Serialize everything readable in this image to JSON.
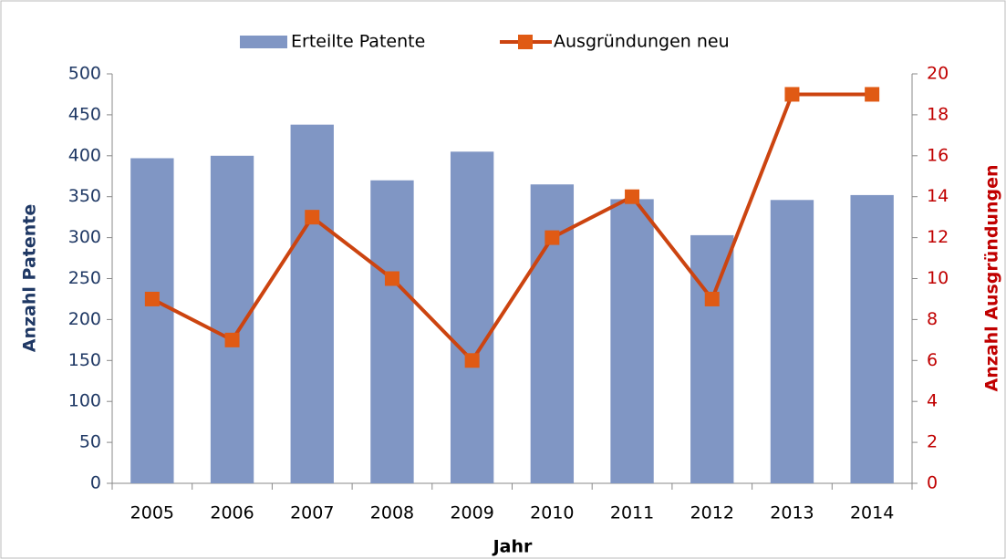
{
  "chart_data": {
    "type": "bar",
    "x_label": "Jahr",
    "y_label": "Anzahl Patente",
    "y2_label": "Anzahl Ausgründungen",
    "categories": [
      "2005",
      "2006",
      "2007",
      "2008",
      "2009",
      "2010",
      "2011",
      "2012",
      "2013",
      "2014"
    ],
    "series": [
      {
        "name": "Erteilte Patente",
        "type": "bar",
        "color": "#8096c4",
        "values": [
          397,
          400,
          438,
          370,
          405,
          365,
          347,
          303,
          346,
          352
        ]
      },
      {
        "name": "Ausgründungen neu",
        "type": "line",
        "axis": "y2",
        "color": "#cc4410",
        "marker_color": "#e05a14",
        "values": [
          9,
          7,
          13,
          10,
          6,
          12,
          14,
          9,
          19,
          19
        ]
      }
    ],
    "ylim": [
      0,
      500
    ],
    "yticks": [
      0,
      50,
      100,
      150,
      200,
      250,
      300,
      350,
      400,
      450,
      500
    ],
    "y2lim": [
      0,
      20
    ],
    "y2ticks": [
      0,
      2,
      4,
      6,
      8,
      10,
      12,
      14,
      16,
      18,
      20
    ],
    "y_color": "#1f3864",
    "y2_color": "#c00000",
    "legend": "top",
    "grid": false
  }
}
